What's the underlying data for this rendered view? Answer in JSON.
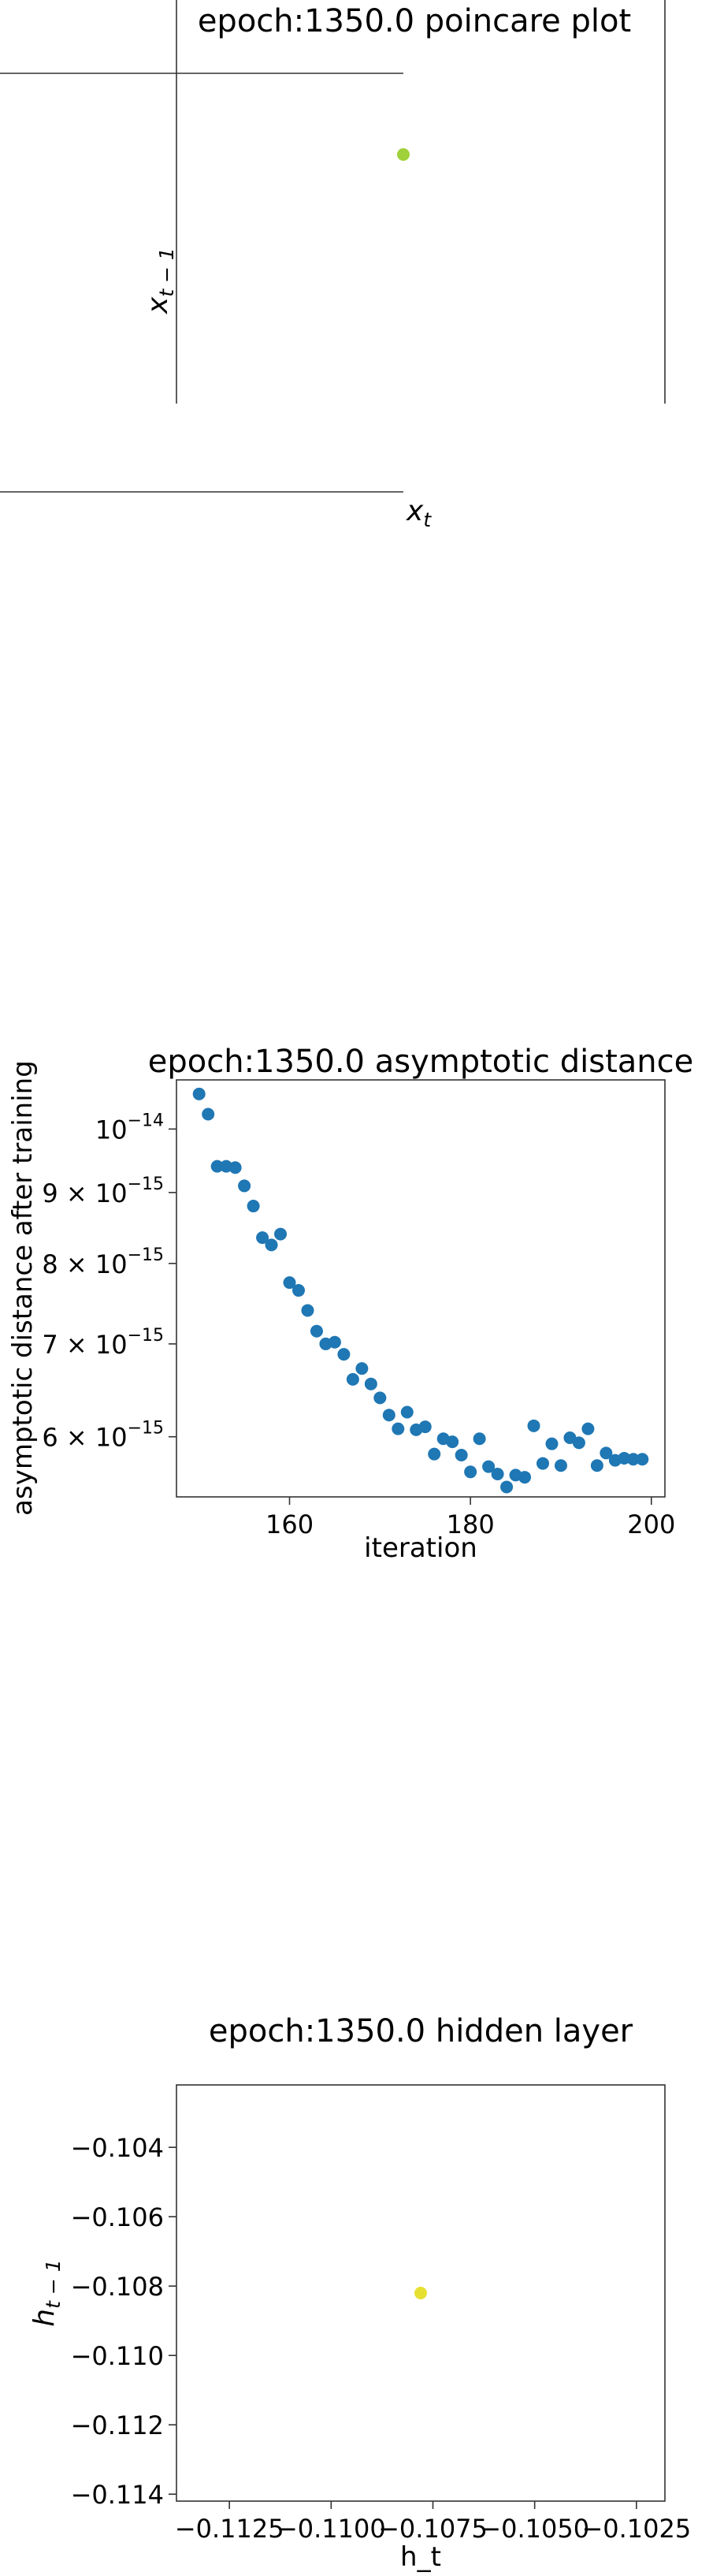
{
  "chart_data": [
    {
      "type": "scatter",
      "title": "epoch:1350.0 poincare plot",
      "xlabel": "x_t",
      "ylabel": "x_{t-1}",
      "point_color": "#a0d13a",
      "points": [
        {
          "x": 0.0,
          "y": 0.0
        }
      ]
    },
    {
      "type": "scatter",
      "title": "epoch:1350.0 asymptotic distance",
      "xlabel": "iteration",
      "ylabel": "asymptotic distance after training",
      "yscale": "log",
      "xlim": [
        147.5,
        201.5
      ],
      "ylim": [
        5.43e-15,
        1.085e-14
      ],
      "xticks": [
        160,
        180,
        200
      ],
      "yticks": [
        {
          "value": 1e-14,
          "base": "10",
          "exp": "−14",
          "mantissa": ""
        },
        {
          "value": 9e-15,
          "base": "10",
          "exp": "−15",
          "mantissa": "9 × "
        },
        {
          "value": 8e-15,
          "base": "10",
          "exp": "−15",
          "mantissa": "8 × "
        },
        {
          "value": 7e-15,
          "base": "10",
          "exp": "−15",
          "mantissa": "7 × "
        },
        {
          "value": 6e-15,
          "base": "10",
          "exp": "−15",
          "mantissa": "6 × "
        }
      ],
      "point_color": "#1f77b4",
      "x": [
        150,
        151,
        152,
        153,
        154,
        155,
        156,
        157,
        158,
        159,
        160,
        161,
        162,
        163,
        164,
        165,
        166,
        167,
        168,
        169,
        170,
        171,
        172,
        173,
        174,
        175,
        176,
        177,
        178,
        179,
        180,
        181,
        182,
        183,
        184,
        185,
        186,
        187,
        188,
        189,
        190,
        191,
        192,
        193,
        194,
        195,
        196,
        197,
        198,
        199
      ],
      "y": [
        1.06e-14,
        1.025e-14,
        9.4e-15,
        9.4e-15,
        9.38e-15,
        9.1e-15,
        8.8e-15,
        8.35e-15,
        8.25e-15,
        8.4e-15,
        7.75e-15,
        7.65e-15,
        7.4e-15,
        7.15e-15,
        7e-15,
        7.02e-15,
        6.88e-15,
        6.6e-15,
        6.72e-15,
        6.55e-15,
        6.4e-15,
        6.22e-15,
        6.08e-15,
        6.25e-15,
        6.07e-15,
        6.1e-15,
        5.83e-15,
        5.98e-15,
        5.95e-15,
        5.82e-15,
        5.66e-15,
        5.98e-15,
        5.71e-15,
        5.64e-15,
        5.52e-15,
        5.63e-15,
        5.61e-15,
        6.11e-15,
        5.74e-15,
        5.93e-15,
        5.72e-15,
        5.99e-15,
        5.94e-15,
        6.08e-15,
        5.72e-15,
        5.84e-15,
        5.77e-15,
        5.79e-15,
        5.78e-15,
        5.78e-15
      ]
    },
    {
      "type": "scatter",
      "title": "epoch:1350.0 hidden layer",
      "xlabel": "h_t",
      "ylabel": "h_{t-1}",
      "xlim": [
        -0.1138,
        -0.1018
      ],
      "ylim": [
        -0.1142,
        -0.1022
      ],
      "xticks": [
        {
          "value": -0.1125,
          "label": "−0.1125"
        },
        {
          "value": -0.11,
          "label": "−0.1100"
        },
        {
          "value": -0.1075,
          "label": "−0.1075"
        },
        {
          "value": -0.105,
          "label": "−0.1050"
        },
        {
          "value": -0.1025,
          "label": "−0.1025"
        }
      ],
      "yticks": [
        {
          "value": -0.104,
          "label": "−0.104"
        },
        {
          "value": -0.106,
          "label": "−0.106"
        },
        {
          "value": -0.108,
          "label": "−0.108"
        },
        {
          "value": -0.11,
          "label": "−0.110"
        },
        {
          "value": -0.112,
          "label": "−0.112"
        },
        {
          "value": -0.114,
          "label": "−0.114"
        }
      ],
      "point_color": "#e6e131",
      "points": [
        {
          "x": -0.1078,
          "y": -0.1082
        }
      ]
    }
  ]
}
